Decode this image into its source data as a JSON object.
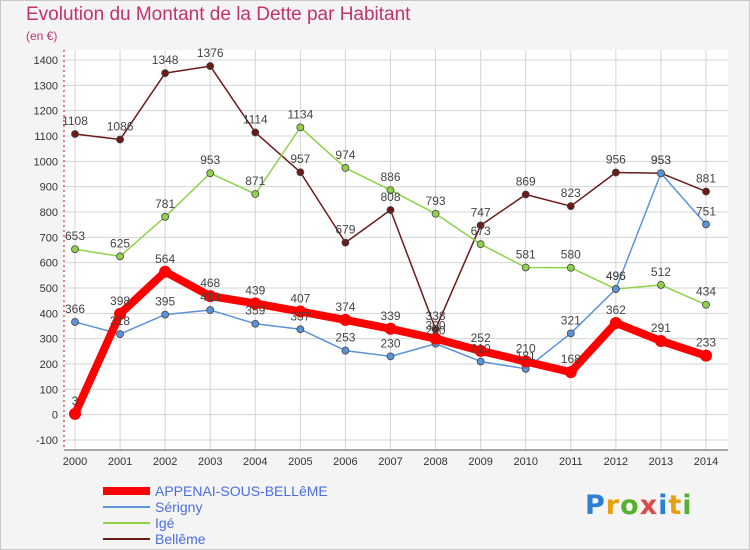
{
  "title": "Evolution du Montant de la Dette par Habitant",
  "subtitle": "(en €)",
  "logo": "Proxiti",
  "colors": {
    "title": "#c2336e",
    "legend_text": "#4a6ee0",
    "plot_bg": "#ffffff",
    "grid": "#d4d4d4",
    "axis": "#c01010"
  },
  "chart_data": {
    "type": "line",
    "x": [
      2000,
      2001,
      2002,
      2003,
      2004,
      2005,
      2006,
      2007,
      2008,
      2009,
      2010,
      2011,
      2012,
      2013,
      2014
    ],
    "ylim": [
      -100,
      1400
    ],
    "yticks": [
      -100,
      0,
      100,
      200,
      300,
      400,
      500,
      600,
      700,
      800,
      900,
      1000,
      1100,
      1200,
      1300,
      1400
    ],
    "grid": true,
    "legend_position": "bottom-left",
    "series": [
      {
        "name": "APPENAI-SOUS-BELLêME",
        "color": "#ff0000",
        "values": [
          3,
          398,
          564,
          468,
          439,
          407,
          374,
          339,
          300,
          252,
          210,
          168,
          362,
          291,
          233
        ]
      },
      {
        "name": "Sérigny",
        "color": "#5b93d8",
        "values": [
          366,
          318,
          395,
          413,
          359,
          337,
          253,
          230,
          280,
          210,
          181,
          321,
          496,
          953,
          751
        ]
      },
      {
        "name": "Igé",
        "color": "#8fd14a",
        "values": [
          653,
          625,
          781,
          953,
          871,
          1134,
          974,
          886,
          793,
          673,
          581,
          580,
          496,
          512,
          434
        ]
      },
      {
        "name": "Bellême",
        "color": "#6b1a1a",
        "values": [
          1108,
          1086,
          1348,
          1376,
          1114,
          957,
          679,
          808,
          338,
          747,
          869,
          823,
          956,
          953,
          881
        ]
      }
    ],
    "labels": [
      {
        "series": 0,
        "index": 0,
        "text": "3"
      },
      {
        "series": 0,
        "index": 1,
        "text": "398"
      },
      {
        "series": 0,
        "index": 2,
        "text": "564"
      },
      {
        "series": 0,
        "index": 3,
        "text": "468"
      },
      {
        "series": 0,
        "index": 4,
        "text": "439"
      },
      {
        "series": 0,
        "index": 5,
        "text": "407"
      },
      {
        "series": 0,
        "index": 6,
        "text": "374"
      },
      {
        "series": 0,
        "index": 7,
        "text": "339"
      },
      {
        "series": 0,
        "index": 8,
        "text": "300"
      },
      {
        "series": 0,
        "index": 9,
        "text": "252"
      },
      {
        "series": 0,
        "index": 10,
        "text": "210"
      },
      {
        "series": 0,
        "index": 11,
        "text": "168"
      },
      {
        "series": 0,
        "index": 12,
        "text": "362"
      },
      {
        "series": 0,
        "index": 13,
        "text": "291"
      },
      {
        "series": 0,
        "index": 14,
        "text": "233"
      },
      {
        "series": 1,
        "index": 0,
        "text": "366"
      },
      {
        "series": 1,
        "index": 1,
        "text": "318"
      },
      {
        "series": 1,
        "index": 2,
        "text": "395"
      },
      {
        "series": 1,
        "index": 3,
        "text": "413"
      },
      {
        "series": 1,
        "index": 4,
        "text": "359"
      },
      {
        "series": 1,
        "index": 5,
        "text": "337"
      },
      {
        "series": 1,
        "index": 6,
        "text": "253"
      },
      {
        "series": 1,
        "index": 7,
        "text": "230"
      },
      {
        "series": 1,
        "index": 8,
        "text": "280"
      },
      {
        "series": 1,
        "index": 9,
        "text": "210"
      },
      {
        "series": 1,
        "index": 10,
        "text": "181"
      },
      {
        "series": 1,
        "index": 11,
        "text": "321"
      },
      {
        "series": 1,
        "index": 12,
        "text": "496"
      },
      {
        "series": 1,
        "index": 13,
        "text": "953"
      },
      {
        "series": 1,
        "index": 14,
        "text": "751"
      },
      {
        "series": 2,
        "index": 0,
        "text": "653"
      },
      {
        "series": 2,
        "index": 1,
        "text": "625"
      },
      {
        "series": 2,
        "index": 2,
        "text": "781"
      },
      {
        "series": 2,
        "index": 3,
        "text": "953"
      },
      {
        "series": 2,
        "index": 4,
        "text": "871"
      },
      {
        "series": 2,
        "index": 5,
        "text": "1134"
      },
      {
        "series": 2,
        "index": 6,
        "text": "974"
      },
      {
        "series": 2,
        "index": 7,
        "text": "886"
      },
      {
        "series": 2,
        "index": 8,
        "text": "793"
      },
      {
        "series": 2,
        "index": 9,
        "text": "673"
      },
      {
        "series": 2,
        "index": 10,
        "text": "581"
      },
      {
        "series": 2,
        "index": 11,
        "text": "580"
      },
      {
        "series": 2,
        "index": 12,
        "text": "496"
      },
      {
        "series": 2,
        "index": 13,
        "text": "512"
      },
      {
        "series": 2,
        "index": 14,
        "text": "434"
      },
      {
        "series": 3,
        "index": 0,
        "text": "1108"
      },
      {
        "series": 3,
        "index": 1,
        "text": "1086"
      },
      {
        "series": 3,
        "index": 2,
        "text": "1348"
      },
      {
        "series": 3,
        "index": 3,
        "text": "1376"
      },
      {
        "series": 3,
        "index": 4,
        "text": "1114"
      },
      {
        "series": 3,
        "index": 5,
        "text": "957"
      },
      {
        "series": 3,
        "index": 6,
        "text": "679"
      },
      {
        "series": 3,
        "index": 7,
        "text": "808"
      },
      {
        "series": 3,
        "index": 8,
        "text": "338"
      },
      {
        "series": 3,
        "index": 9,
        "text": "747"
      },
      {
        "series": 3,
        "index": 10,
        "text": "869"
      },
      {
        "series": 3,
        "index": 11,
        "text": "823"
      },
      {
        "series": 3,
        "index": 12,
        "text": "956"
      },
      {
        "series": 3,
        "index": 13,
        "text": "953"
      },
      {
        "series": 3,
        "index": 14,
        "text": "881"
      }
    ]
  }
}
